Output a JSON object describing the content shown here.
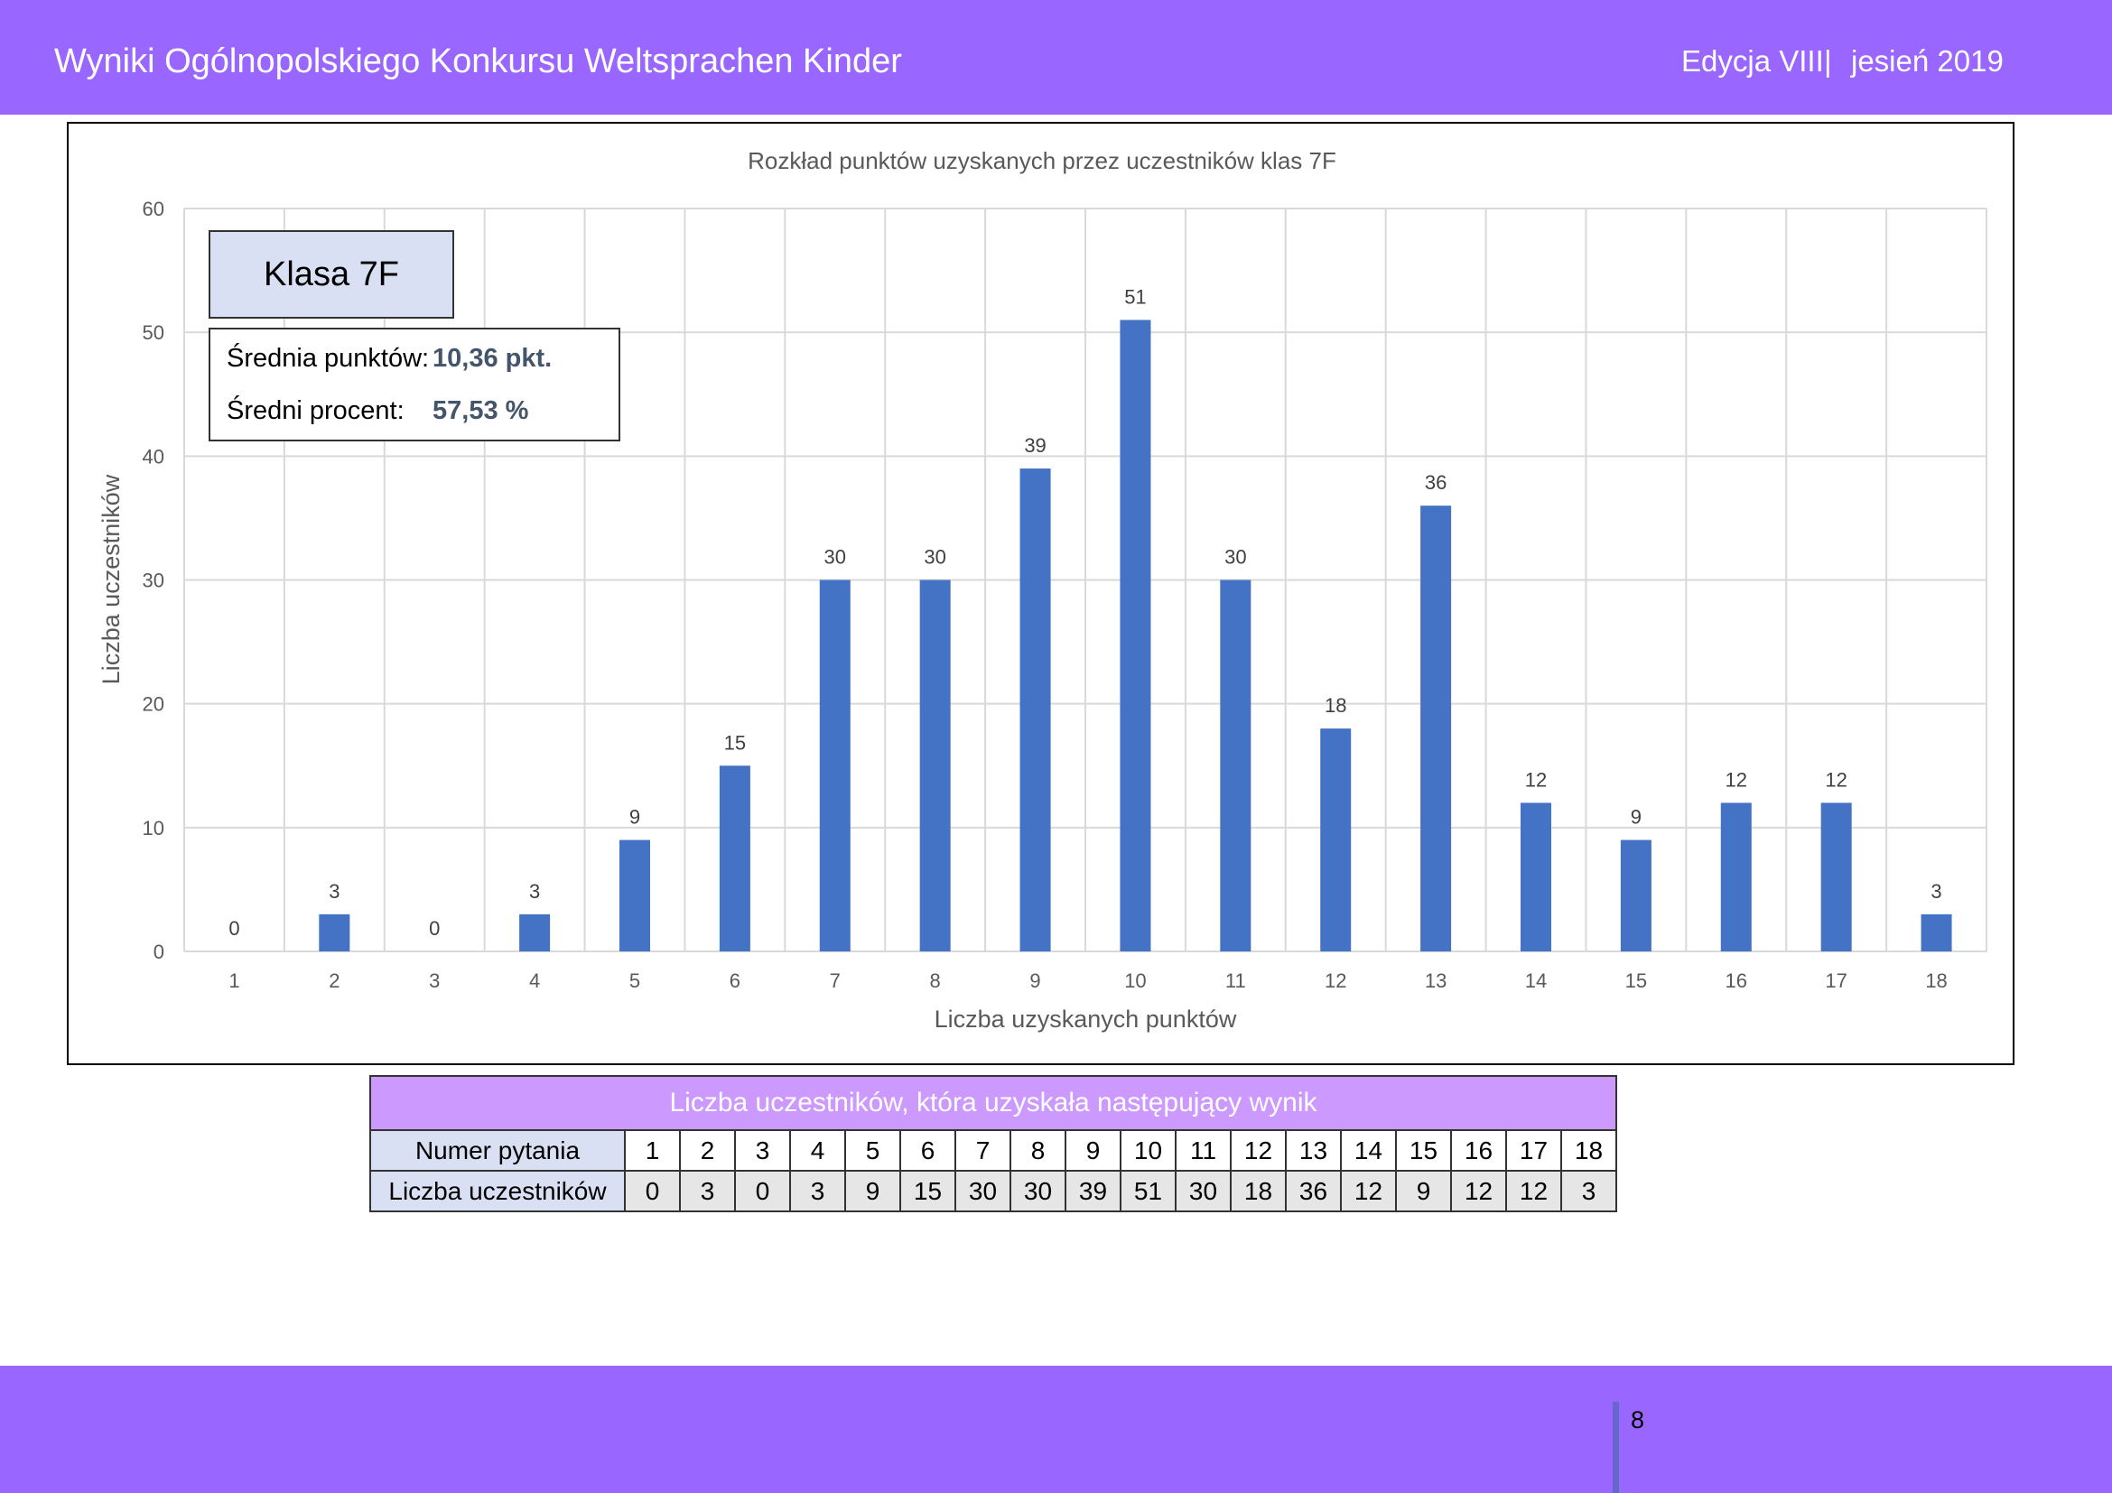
{
  "header": {
    "title": "Wyniki Ogólnopolskiego Konkursu Weltsprachen Kinder",
    "edition": "Edycja VIII",
    "separator": "|",
    "season": "jesień 2019"
  },
  "chart_data": {
    "type": "bar",
    "title": "Rozkład punktów uzyskanych przez uczestników klas 7F",
    "xlabel": "Liczba uzyskanych punktów",
    "ylabel": "Liczba uczestników",
    "categories": [
      "1",
      "2",
      "3",
      "4",
      "5",
      "6",
      "7",
      "8",
      "9",
      "10",
      "11",
      "12",
      "13",
      "14",
      "15",
      "16",
      "17",
      "18"
    ],
    "values": [
      0,
      3,
      0,
      3,
      9,
      15,
      30,
      30,
      39,
      51,
      30,
      18,
      36,
      12,
      9,
      12,
      12,
      3
    ],
    "ylim": [
      0,
      60
    ],
    "yticks": [
      0,
      10,
      20,
      30,
      40,
      50,
      60
    ],
    "grid": true,
    "bar_color": "#4472c4"
  },
  "info": {
    "class_label": "Klasa 7F",
    "avg_points_label": "Średnia punktów:",
    "avg_points_value": "10,36 pkt.",
    "avg_percent_label": "Średni procent:",
    "avg_percent_value": "57,53 %"
  },
  "table": {
    "caption": "Liczba uczestników, która uzyskała następujący wynik",
    "row1_label": "Numer pytania",
    "row2_label": "Liczba uczestników",
    "columns": [
      "1",
      "2",
      "3",
      "4",
      "5",
      "6",
      "7",
      "8",
      "9",
      "10",
      "11",
      "12",
      "13",
      "14",
      "15",
      "16",
      "17",
      "18"
    ],
    "counts": [
      "0",
      "3",
      "0",
      "3",
      "9",
      "15",
      "30",
      "30",
      "39",
      "51",
      "30",
      "18",
      "36",
      "12",
      "9",
      "12",
      "12",
      "3"
    ]
  },
  "footer": {
    "page_number": "8"
  }
}
